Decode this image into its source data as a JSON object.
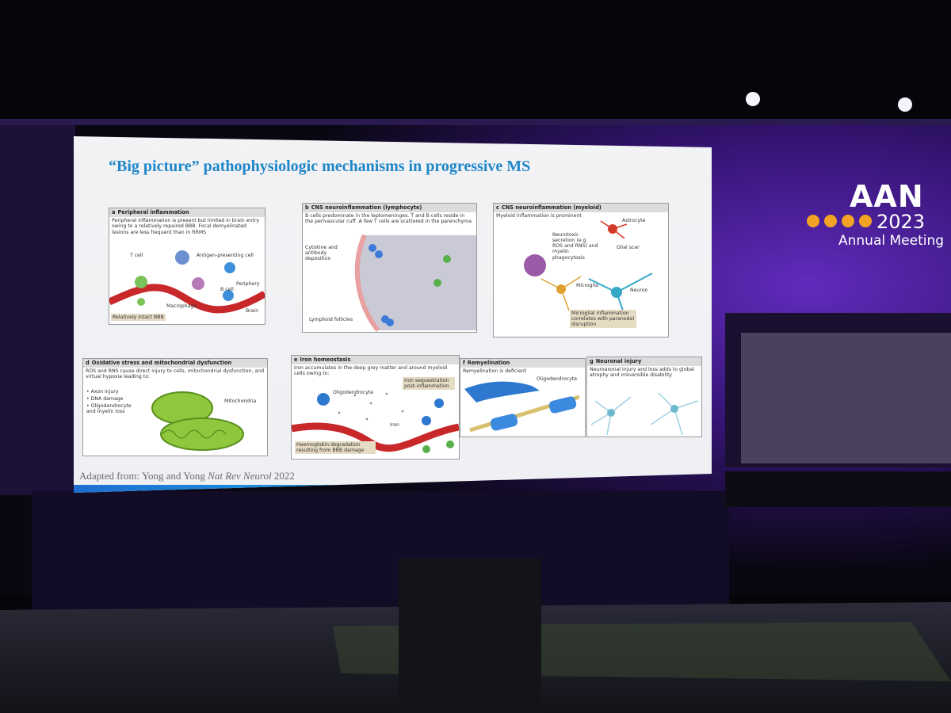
{
  "slide": {
    "title": "“Big picture” pathophysiologic mechanisms in progressive MS",
    "panels": [
      {
        "letter": "a",
        "heading": "Peripheral inflammation",
        "description": "Peripheral inflammation is present but limited in brain entry owing to a relatively repaired BBB. Focal demyelinated lesions are less frequent than in RRMS",
        "labels": [
          "T cell",
          "Antigen-presenting cell",
          "Periphery",
          "Macrophage",
          "B cell",
          "Brain",
          "Relatively intact BBB"
        ]
      },
      {
        "letter": "b",
        "heading": "CNS neuroinflammation (lymphocyte)",
        "description": "B cells predominate in the leptomeninges. T and B cells reside in the perivascular cuff. A few T cells are scattered in the parenchyma",
        "labels": [
          "Cytokine and antibody deposition",
          "Lymphoid follicles"
        ]
      },
      {
        "letter": "c",
        "heading": "CNS neuroinflammation (myeloid)",
        "description": "Myeloid inflammation is prominent",
        "labels": [
          "Astrocyte",
          "Neurotoxic secretion (e.g. ROS and RNS) and myelin phagocytosis",
          "Glial scar",
          "Microglia",
          "Neuron",
          "Microglial inflammation correlates with paranodal disruption"
        ]
      },
      {
        "letter": "d",
        "heading": "Oxidative stress and mitochondrial dysfunction",
        "description": "ROS and RNS cause direct injury to cells, mitochondrial dysfunction, and virtual hypoxia leading to:",
        "bullets": [
          "Axon injury",
          "DNA damage",
          "Oligodendrocyte and myelin loss"
        ],
        "labels": [
          "Mitochondria"
        ]
      },
      {
        "letter": "e",
        "heading": "Iron homeostasis",
        "description": "Iron accumulates in the deep grey matter and around myeloid cells owing to:",
        "labels": [
          "Oligodendrocyte",
          "Iron sequestration post-inflammation",
          "Iron",
          "Haemoglobin degradation resulting from BBB damage"
        ]
      },
      {
        "letter": "f",
        "heading": "Remyelination",
        "description": "Remyelination is deficient",
        "labels": [
          "Oligodendrocyte"
        ]
      },
      {
        "letter": "g",
        "heading": "Neuronal injury",
        "description": "Neuroaxonal injury and loss adds to global atrophy and irreversible disability",
        "labels": []
      }
    ],
    "citation": {
      "prefix": "Adapted from: Yong and Yong",
      "journal": "Nat Rev Neurol",
      "year": "2022"
    }
  },
  "logo": {
    "name": "AAN",
    "year": "2023",
    "event": "Annual Meeting"
  }
}
